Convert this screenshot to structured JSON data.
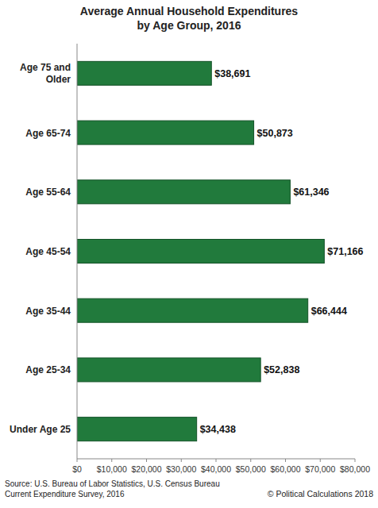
{
  "chart_data": {
    "type": "bar",
    "orientation": "horizontal",
    "title": "Average Annual Household Expenditures\nby Age Group, 2016",
    "categories": [
      "Age 75 and Older",
      "Age 65-74",
      "Age 55-64",
      "Age 45-54",
      "Age 35-44",
      "Age 25-34",
      "Under Age 25"
    ],
    "values": [
      38691,
      50873,
      61346,
      71166,
      66444,
      52838,
      34438
    ],
    "value_labels": [
      "$38,691",
      "$50,873",
      "$61,346",
      "$71,166",
      "$66,444",
      "$52,838",
      "$34,438"
    ],
    "data_labels": true,
    "color": "#217a3c",
    "xlim": [
      0,
      80000
    ],
    "xticks": [
      {
        "value": 0,
        "label": "$0"
      },
      {
        "value": 10000,
        "label": "$10,000"
      },
      {
        "value": 20000,
        "label": "$20,000"
      },
      {
        "value": 30000,
        "label": "$30,000"
      },
      {
        "value": 40000,
        "label": "$40,000"
      },
      {
        "value": 50000,
        "label": "$50,000"
      },
      {
        "value": 60000,
        "label": "$60,000"
      },
      {
        "value": 70000,
        "label": "$70,000"
      },
      {
        "value": 80000,
        "label": "$80,000"
      }
    ],
    "grid": false,
    "source": "Source: U.S. Bureau of Labor Statistics, U.S. Census Bureau\nCurrent Expenditure Survey, 2016",
    "copyright": "© Political Calculations 2018"
  }
}
